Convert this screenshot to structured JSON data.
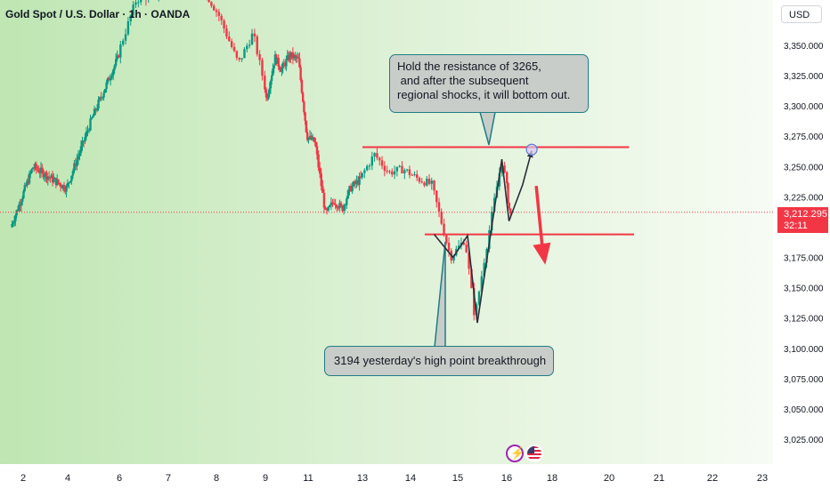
{
  "header": {
    "title": "Gold Spot / U.S. Dollar · 1h · OANDA",
    "currency_button": "USD"
  },
  "price_badge": {
    "price": "3,212.295",
    "countdown": "32:11"
  },
  "annotations": {
    "top_callout": "Hold the resistance of 3265,\n and after the subsequent\nregional shocks, it will bottom out.",
    "bottom_callout": "3194 yesterday's high point breakthrough"
  },
  "events": [
    {
      "icon": "lightning-event-icon"
    },
    {
      "icon": "us-flag-event-icon"
    }
  ],
  "colors": {
    "up": "#089981",
    "down": "#f23645",
    "level_line": "#f23645",
    "callout_border": "#1f7d85",
    "callout_fill": "#c8cdc9",
    "arrow": "#f23645"
  },
  "chart_data": {
    "type": "candlestick",
    "symbol": "Gold Spot / U.S. Dollar",
    "interval": "1h",
    "source": "OANDA",
    "y_axis": {
      "range": [
        3005,
        3395
      ],
      "ticks": [
        "3,350.000",
        "3,325.000",
        "3,300.000",
        "3,275.000",
        "3,250.000",
        "3,225.000",
        "3,200.000",
        "3,175.000",
        "3,150.000",
        "3,125.000",
        "3,100.000",
        "3,075.000",
        "3,050.000",
        "3,025.000"
      ]
    },
    "x_axis": {
      "ticks": [
        "2",
        "4",
        "6",
        "7",
        "8",
        "9",
        "11",
        "13",
        "14",
        "15",
        "16",
        "18",
        "20",
        "21",
        "22",
        "23"
      ]
    },
    "current_price": 3212.295,
    "path_anchors": {
      "day": [
        1.5,
        2.5,
        4.0,
        5.0,
        6.0,
        6.4,
        6.8,
        7.3,
        7.8,
        8.1,
        8.5,
        8.8,
        9.1,
        9.5,
        9.8,
        10.2,
        10.6,
        11.0,
        11.3,
        11.7,
        12.0,
        12.3,
        12.6,
        13.0,
        13.3,
        13.6,
        13.9,
        14.2,
        14.5,
        14.7,
        14.9,
        15.2,
        15.4,
        15.6,
        15.8,
        15.95,
        16.1,
        16.2
      ],
      "price": [
        3200,
        3250,
        3232,
        3290,
        3340,
        3388,
        3392,
        3400,
        3395,
        3375,
        3335,
        3360,
        3305,
        3340,
        3330,
        3342,
        3338,
        3275,
        3270,
        3210,
        3222,
        3215,
        3232,
        3240,
        3260,
        3245,
        3248,
        3240,
        3235,
        3205,
        3175,
        3190,
        3125,
        3175,
        3222,
        3255,
        3225,
        3210
      ]
    },
    "horizontal_levels": [
      {
        "price": 3266,
        "from_day": 13.0,
        "to_day": 20.4
      },
      {
        "price": 3194,
        "from_day": 14.3,
        "to_day": 20.5
      }
    ],
    "projection_path": {
      "day": [
        14.5,
        14.9,
        15.2,
        15.4,
        15.9,
        16.1,
        16.7,
        17.1
      ],
      "price": [
        3194,
        3175,
        3193,
        3121,
        3256,
        3205,
        3235,
        3263
      ]
    },
    "projection_arrow": {
      "day_from": 17.3,
      "price_from": 3234,
      "day_to": 17.7,
      "price_to": 3169
    },
    "marked_point": {
      "day": 17.1,
      "price": 3264
    }
  }
}
